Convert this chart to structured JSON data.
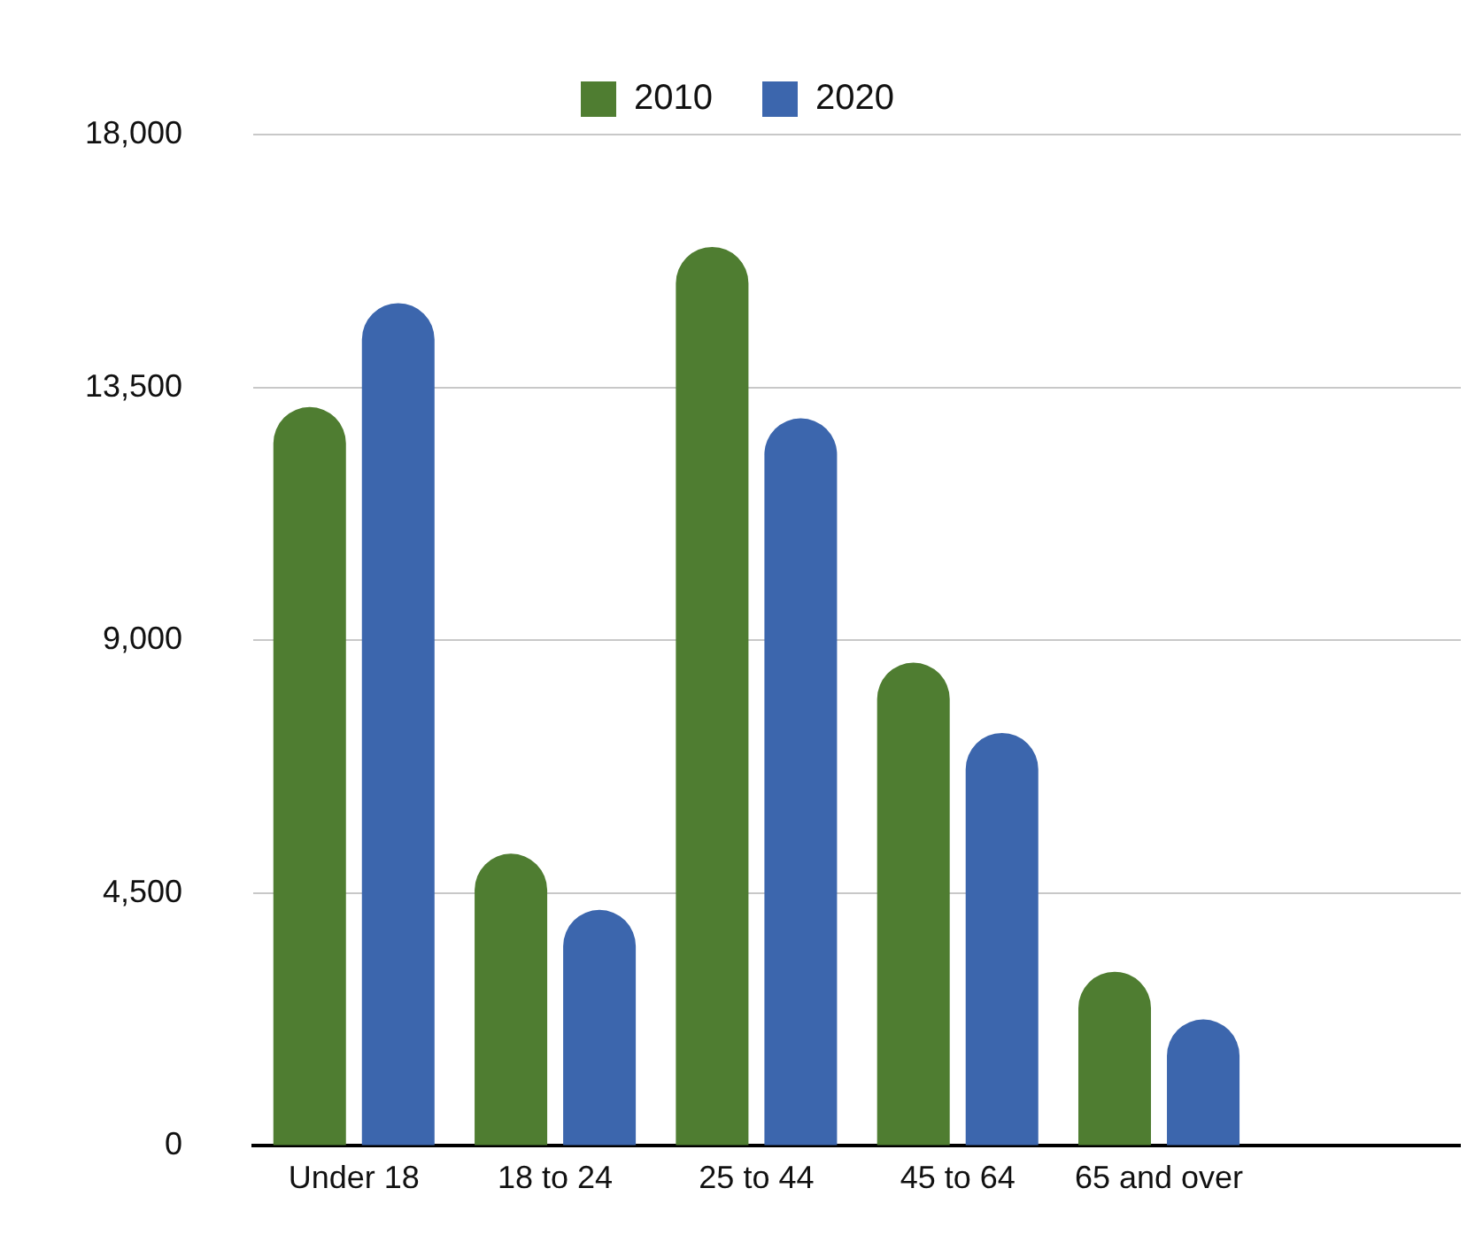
{
  "chart_data": {
    "type": "bar",
    "categories": [
      "Under 18",
      "18 to 24",
      "25 to 44",
      "45 to 64",
      "65 and over",
      null
    ],
    "series": [
      {
        "name": "2010",
        "color": "#4f7d31",
        "values": [
          13150,
          5200,
          16000,
          8600,
          3100,
          null
        ]
      },
      {
        "name": "2020",
        "color": "#3c66ad",
        "values": [
          15000,
          4200,
          12950,
          7350,
          2250,
          null
        ]
      }
    ],
    "ylim": [
      0,
      18000
    ],
    "yticks": [
      {
        "value": 0,
        "label": "0"
      },
      {
        "value": 4500,
        "label": "4,500"
      },
      {
        "value": 9000,
        "label": "9,000"
      },
      {
        "value": 13500,
        "label": "13,500"
      },
      {
        "value": 18000,
        "label": "18,000"
      }
    ],
    "grid": "y",
    "legend": "top"
  }
}
